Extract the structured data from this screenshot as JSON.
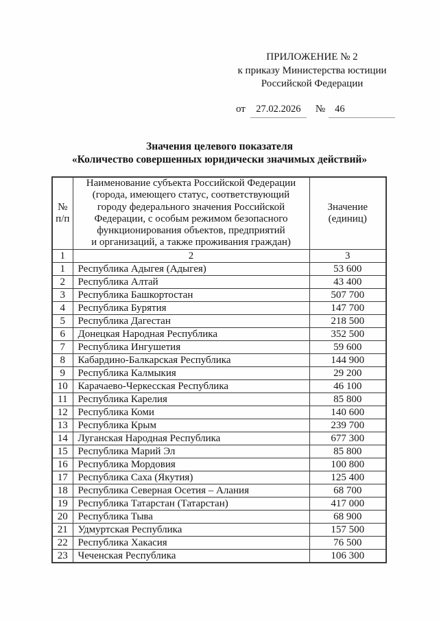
{
  "header_block": {
    "line1": "ПРИЛОЖЕНИЕ № 2",
    "line2": "к приказу Министерства юстиции",
    "line3": "Российской Федерации"
  },
  "date_line": {
    "from_label": "от",
    "date_value": "27.02.2026",
    "number_label": "№",
    "number_value": "46"
  },
  "title": {
    "line1": "Значения целевого показателя",
    "line2": "«Количество совершенных юридически значимых действий»"
  },
  "table": {
    "headers": {
      "col1": "№\nп/п",
      "col2": "Наименование субъекта Российской Федерации\n(города, имеющего статус, соответствующий\nгороду федерального значения Российской\nФедерации, с особым режимом безопасного\nфункционирования объектов, предприятий\nи организаций, а также проживания граждан)",
      "col3": "Значение\n(единиц)"
    },
    "numbering_row": [
      "1",
      "2",
      "3"
    ],
    "rows": [
      {
        "num": "1",
        "name": "Республика Адыгея (Адыгея)",
        "value": "53 600"
      },
      {
        "num": "2",
        "name": "Республика Алтай",
        "value": "43 400"
      },
      {
        "num": "3",
        "name": "Республика Башкортостан",
        "value": "507 700"
      },
      {
        "num": "4",
        "name": "Республика Бурятия",
        "value": "147 700"
      },
      {
        "num": "5",
        "name": "Республика Дагестан",
        "value": "218 500"
      },
      {
        "num": "6",
        "name": "Донецкая Народная Республика",
        "value": "352 500"
      },
      {
        "num": "7",
        "name": "Республика Ингушетия",
        "value": "59 600"
      },
      {
        "num": "8",
        "name": "Кабардино-Балкарская Республика",
        "value": "144 900"
      },
      {
        "num": "9",
        "name": "Республика Калмыкия",
        "value": "29 200"
      },
      {
        "num": "10",
        "name": "Карачаево-Черкесская Республика",
        "value": "46 100"
      },
      {
        "num": "11",
        "name": "Республика Карелия",
        "value": "85 800"
      },
      {
        "num": "12",
        "name": "Республика Коми",
        "value": "140 600"
      },
      {
        "num": "13",
        "name": "Республика Крым",
        "value": "239 700"
      },
      {
        "num": "14",
        "name": "Луганская Народная Республика",
        "value": "677 300"
      },
      {
        "num": "15",
        "name": "Республика Марий Эл",
        "value": "85 800"
      },
      {
        "num": "16",
        "name": "Республика Мордовия",
        "value": "100 800"
      },
      {
        "num": "17",
        "name": "Республика Саха (Якутия)",
        "value": "125 400"
      },
      {
        "num": "18",
        "name": "Республика Северная Осетия – Алания",
        "value": "68 700"
      },
      {
        "num": "19",
        "name": "Республика Татарстан (Татарстан)",
        "value": "417 000"
      },
      {
        "num": "20",
        "name": "Республика Тыва",
        "value": "68 900"
      },
      {
        "num": "21",
        "name": "Удмуртская Республика",
        "value": "157 500"
      },
      {
        "num": "22",
        "name": "Республика Хакасия",
        "value": "76 500"
      },
      {
        "num": "23",
        "name": "Чеченская Республика",
        "value": "106 300"
      }
    ]
  }
}
